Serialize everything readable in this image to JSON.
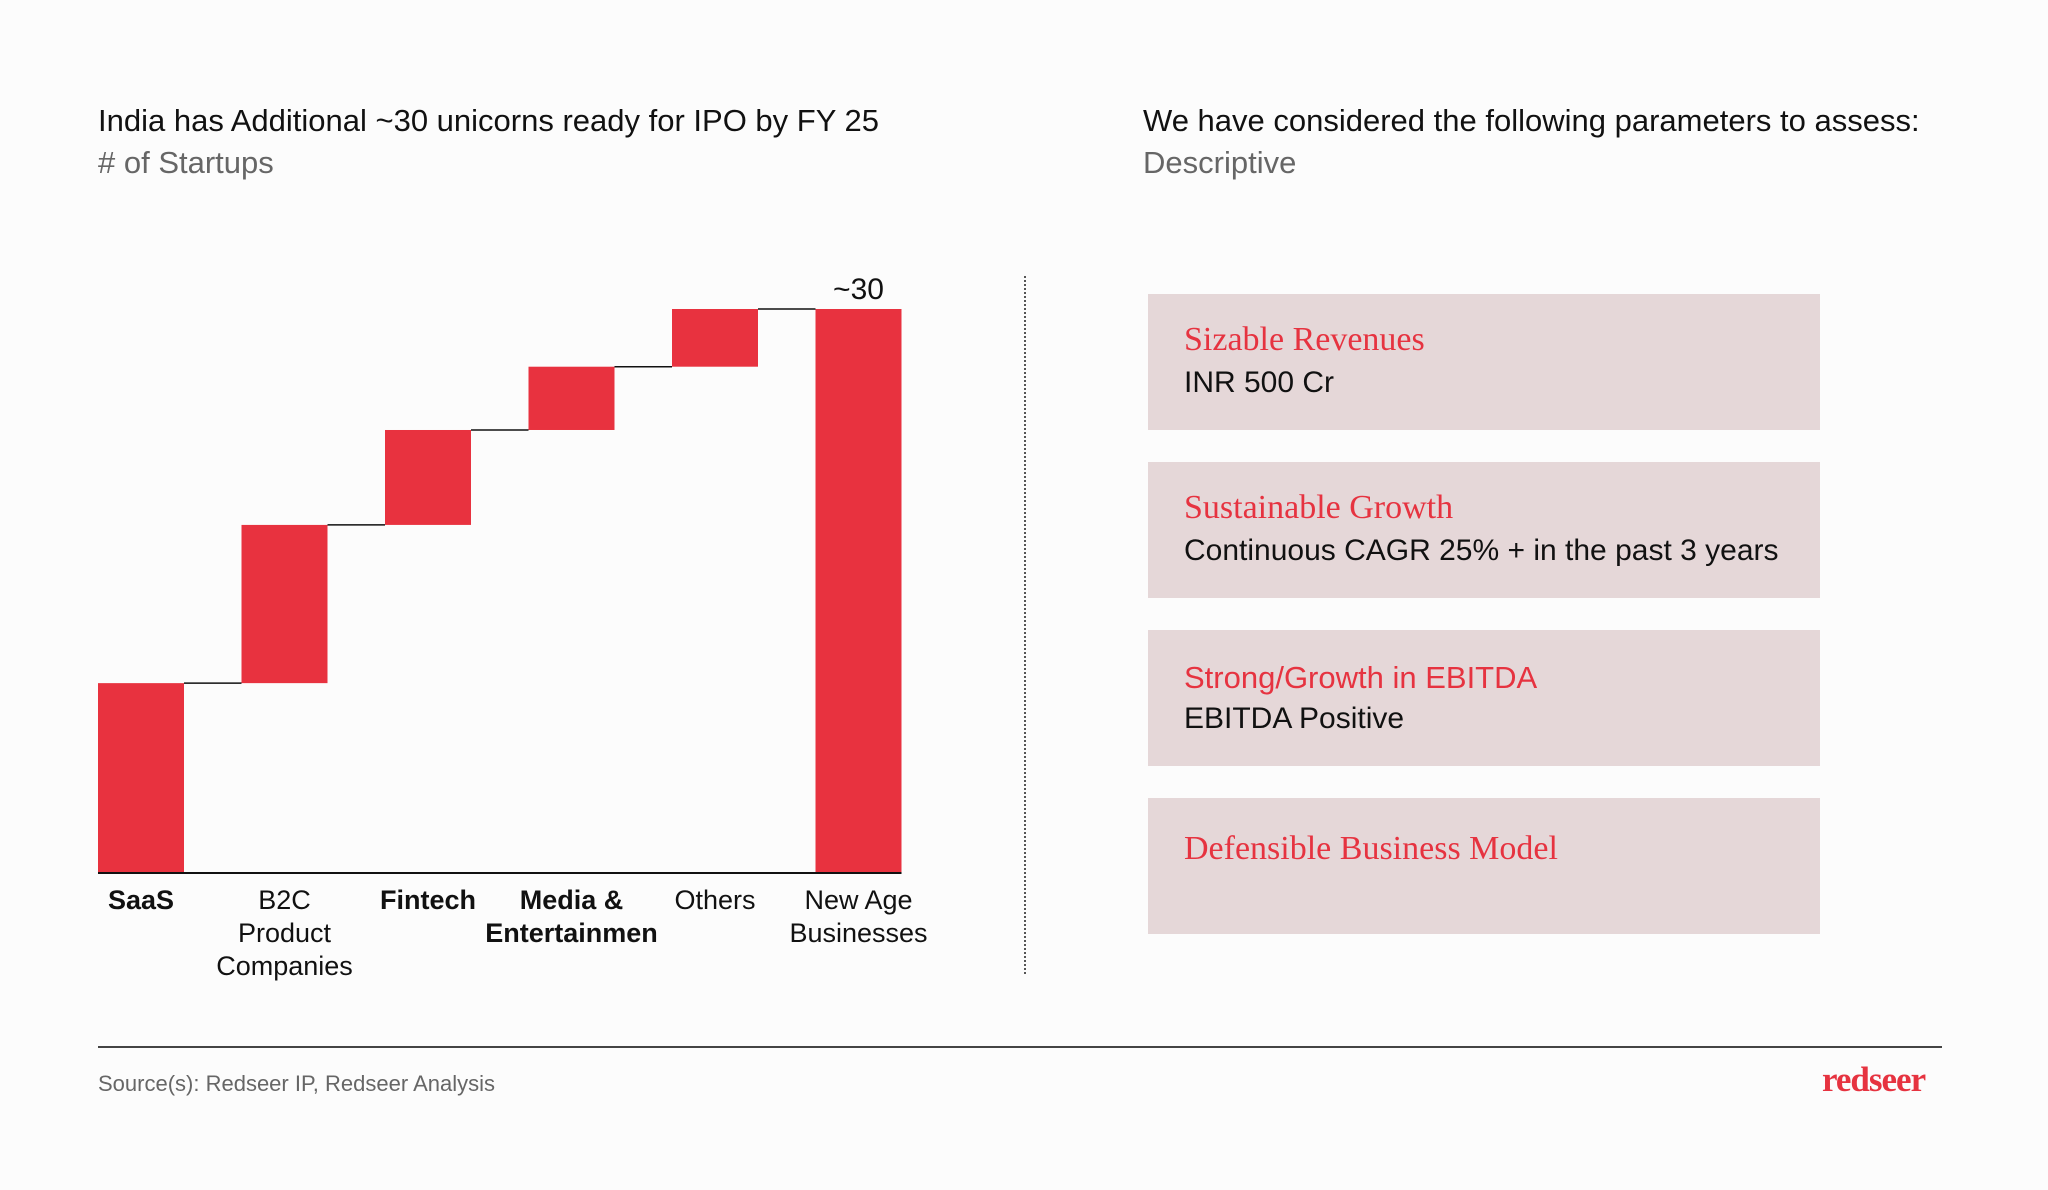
{
  "left": {
    "title": "India has Additional ~30 unicorns ready for IPO by FY 25",
    "subtitle": "# of Startups"
  },
  "right": {
    "title": "We have considered the following parameters to assess:",
    "subtitle": "Descriptive",
    "cards": [
      {
        "heading": "Sizable Revenues",
        "body": "INR 500 Cr"
      },
      {
        "heading": "Sustainable Growth",
        "body": "Continuous CAGR 25% + in the past 3 years"
      },
      {
        "heading": "Strong/Growth in EBITDA",
        "body": "EBITDA Positive"
      },
      {
        "heading": "Defensible Business Model",
        "body": ""
      }
    ]
  },
  "footer": {
    "source": "Source(s): Redseer IP, Redseer Analysis",
    "logo": "redseer"
  },
  "colors": {
    "bar": "#e8323f",
    "card_bg": "#e5d7d8",
    "accent": "#e63340"
  },
  "chart_data": {
    "type": "bar",
    "subtype": "waterfall",
    "categories": [
      [
        "SaaS"
      ],
      [
        "B2C",
        "Product",
        "Companies"
      ],
      [
        "Fintech"
      ],
      [
        "Media &",
        "Entertainmen"
      ],
      [
        "Others"
      ],
      [
        "New Age",
        "Businesses"
      ]
    ],
    "bold_categories": [
      true,
      false,
      true,
      true,
      false,
      false
    ],
    "values": [
      10.2,
      8.5,
      5.1,
      3.4,
      3.1,
      30.3
    ],
    "is_total": [
      false,
      false,
      false,
      false,
      false,
      true
    ],
    "total_label": "~30",
    "ylim": [
      0,
      30.3
    ]
  }
}
